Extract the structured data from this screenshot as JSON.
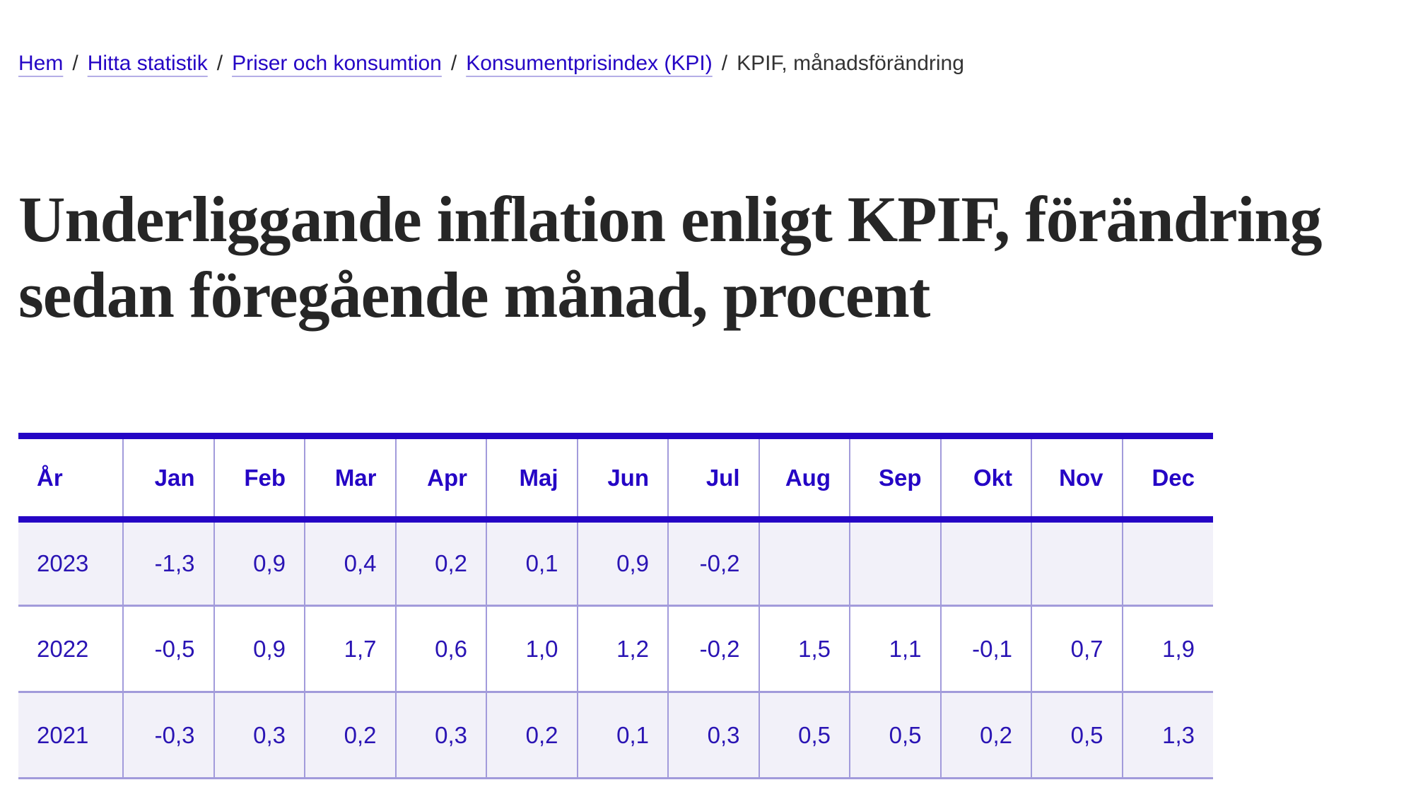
{
  "breadcrumb": {
    "separator": "/",
    "links": [
      {
        "label": "Hem"
      },
      {
        "label": "Hitta statistik"
      },
      {
        "label": "Priser och konsumtion"
      },
      {
        "label": "Konsumentprisindex (KPI)"
      }
    ],
    "current": "KPIF, månadsförändring"
  },
  "page": {
    "title": "Underliggande inflation enligt KPIF, förändring sedan föregående månad, procent"
  },
  "table": {
    "headers": [
      "År",
      "Jan",
      "Feb",
      "Mar",
      "Apr",
      "Maj",
      "Jun",
      "Jul",
      "Aug",
      "Sep",
      "Okt",
      "Nov",
      "Dec"
    ],
    "rows": [
      {
        "year": "2023",
        "values": [
          "-1,3",
          "0,9",
          "0,4",
          "0,2",
          "0,1",
          "0,9",
          "-0,2",
          "",
          "",
          "",
          "",
          ""
        ]
      },
      {
        "year": "2022",
        "values": [
          "-0,5",
          "0,9",
          "1,7",
          "0,6",
          "1,0",
          "1,2",
          "-0,2",
          "1,5",
          "1,1",
          "-0,1",
          "0,7",
          "1,9"
        ]
      },
      {
        "year": "2021",
        "values": [
          "-0,3",
          "0,3",
          "0,2",
          "0,3",
          "0,2",
          "0,1",
          "0,3",
          "0,5",
          "0,5",
          "0,2",
          "0,5",
          "1,3"
        ]
      }
    ]
  },
  "chart_data": {
    "type": "table",
    "title": "Underliggande inflation enligt KPIF, förändring sedan föregående månad, procent",
    "unit": "procent",
    "decimal_separator": ",",
    "columns": [
      "År",
      "Jan",
      "Feb",
      "Mar",
      "Apr",
      "Maj",
      "Jun",
      "Jul",
      "Aug",
      "Sep",
      "Okt",
      "Nov",
      "Dec"
    ],
    "rows": [
      {
        "year": 2023,
        "values": [
          -1.3,
          0.9,
          0.4,
          0.2,
          0.1,
          0.9,
          -0.2,
          null,
          null,
          null,
          null,
          null
        ]
      },
      {
        "year": 2022,
        "values": [
          -0.5,
          0.9,
          1.7,
          0.6,
          1.0,
          1.2,
          -0.2,
          1.5,
          1.1,
          -0.1,
          0.7,
          1.9
        ]
      },
      {
        "year": 2021,
        "values": [
          -0.3,
          0.3,
          0.2,
          0.3,
          0.2,
          0.1,
          0.3,
          0.5,
          0.5,
          0.2,
          0.5,
          1.3
        ]
      }
    ]
  },
  "colors": {
    "accent": "#2505c5",
    "cell-text": "#2a14b4",
    "separator": "#a29bdb",
    "row-alt": "#f2f1f9",
    "heading": "#262626"
  }
}
